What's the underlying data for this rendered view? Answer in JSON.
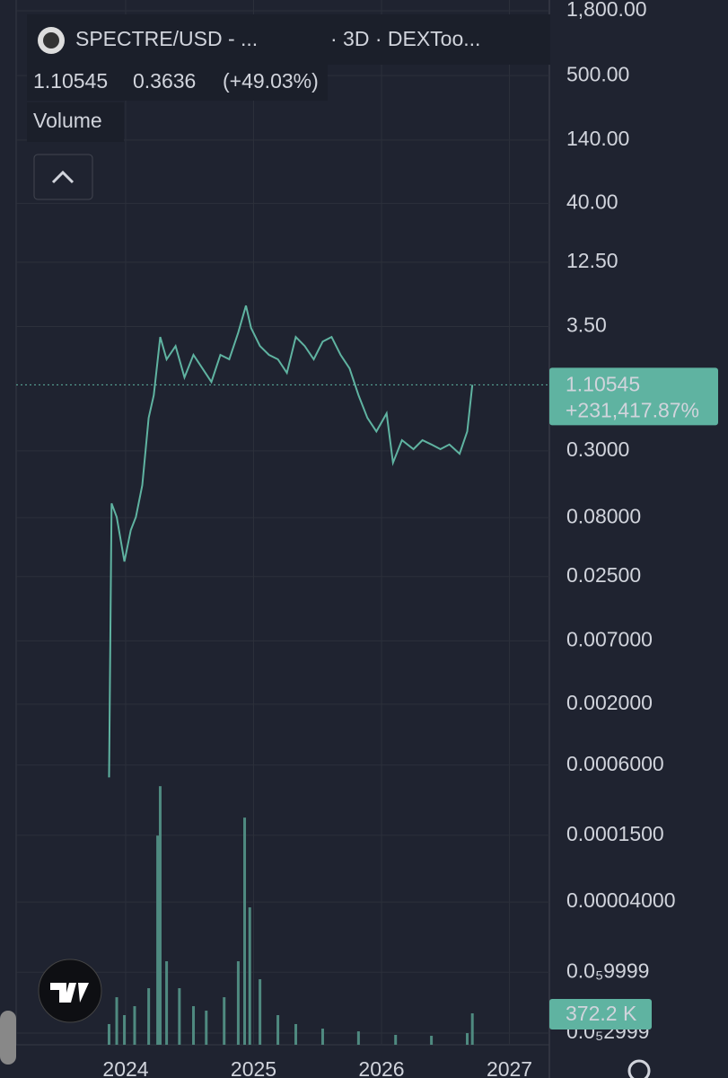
{
  "chart_data": {
    "type": "line",
    "title": "SPECTRE/USD - ...",
    "subtitle": "· 3D · DEXToo...",
    "legend_values": [
      "1.10545",
      "0.3636",
      "(+49.03%)"
    ],
    "last_price_label": "1.10545",
    "change_label": "+231,417.87%",
    "log_scale": true,
    "grid": true,
    "x": [
      2023.87,
      2023.89,
      2023.93,
      2023.99,
      2024.04,
      2024.08,
      2024.13,
      2024.18,
      2024.22,
      2024.27,
      2024.32,
      2024.39,
      2024.46,
      2024.53,
      2024.6,
      2024.67,
      2024.74,
      2024.81,
      2024.88,
      2024.94,
      2024.98,
      2025.05,
      2025.12,
      2025.19,
      2025.26,
      2025.33,
      2025.4,
      2025.47,
      2025.54,
      2025.61,
      2025.68,
      2025.75,
      2025.82,
      2025.89,
      2025.96,
      2026.04,
      2026.09,
      2026.16,
      2026.25,
      2026.32,
      2026.39,
      2026.46,
      2026.53,
      2026.61,
      2026.67,
      2026.71
    ],
    "xlim": [
      2023.144,
      2027.312
    ],
    "xticks": [
      2024,
      2025,
      2026,
      2027
    ],
    "ylim": [
      2.38e-06,
      2230
    ],
    "yticks": [
      {
        "value": 1800,
        "label": "1,800.00"
      },
      {
        "value": 500,
        "label": "500.00"
      },
      {
        "value": 140,
        "label": "140.00"
      },
      {
        "value": 40,
        "label": "40.00"
      },
      {
        "value": 12.5,
        "label": "12.50"
      },
      {
        "value": 3.5,
        "label": "3.50"
      },
      {
        "value": 0.3,
        "label": "0.3000"
      },
      {
        "value": 0.08,
        "label": "0.08000"
      },
      {
        "value": 0.025,
        "label": "0.02500"
      },
      {
        "value": 0.007,
        "label": "0.007000"
      },
      {
        "value": 0.002,
        "label": "0.002000"
      },
      {
        "value": 0.0006,
        "label": "0.0006000"
      },
      {
        "value": 0.00015,
        "label": "0.0001500"
      },
      {
        "value": 4e-05,
        "label": "0.00004000"
      },
      {
        "value": 9.999e-06,
        "label": "0.0₅9999"
      },
      {
        "value": 2.999e-06,
        "label": "0.0₅2999"
      }
    ],
    "y2lim": [
      0,
      12372
    ],
    "series": [
      {
        "color": "#5fb3a1",
        "values": [
          0.00047,
          0.106,
          0.081,
          0.0336,
          0.0625,
          0.081,
          0.152,
          0.575,
          0.9,
          2.85,
          1.83,
          2.38,
          1.28,
          2.0,
          1.53,
          1.17,
          2.0,
          1.83,
          3.11,
          5.3,
          3.4,
          2.38,
          2.0,
          1.83,
          1.4,
          2.85,
          2.38,
          1.83,
          2.6,
          2.85,
          2.0,
          1.53,
          0.9,
          0.575,
          0.44,
          0.63,
          0.237,
          0.37,
          0.31,
          0.37,
          0.34,
          0.31,
          0.34,
          0.283,
          0.44,
          1.10545
        ]
      },
      {
        "name": "Volume",
        "axis": "y2",
        "color": "#4f8a80",
        "x": [
          2023.87,
          2023.93,
          2023.99,
          2024.07,
          2024.18,
          2024.25,
          2024.27,
          2024.32,
          2024.42,
          2024.53,
          2024.63,
          2024.77,
          2024.88,
          2024.93,
          2024.97,
          2025.05,
          2025.19,
          2025.33,
          2025.54,
          2025.82,
          2026.11,
          2026.39,
          2026.67,
          2026.71
        ],
        "values": [
          245,
          563,
          351,
          457,
          670,
          2477,
          3062,
          989,
          670,
          457,
          404,
          563,
          989,
          2690,
          1627,
          776,
          351,
          245,
          191,
          159,
          117,
          106,
          138,
          372.2
        ],
        "value_labels": [
          null,
          null,
          null,
          null,
          null,
          null,
          null,
          null,
          null,
          null,
          null,
          null,
          null,
          null,
          null,
          null,
          null,
          null,
          null,
          null,
          null,
          null,
          null,
          "372.2 K"
        ]
      }
    ]
  }
}
